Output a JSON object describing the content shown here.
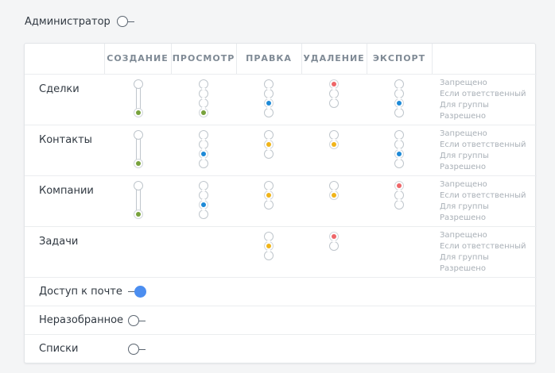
{
  "admin": {
    "label": "Администратор"
  },
  "columns": [
    "СОЗДАНИЕ",
    "ПРОСМОТР",
    "ПРАВКА",
    "УДАЛЕНИЕ",
    "ЭКСПОРТ"
  ],
  "levels": [
    "Запрещено",
    "Если ответственный",
    "Для группы",
    "Разрешено"
  ],
  "colors": {
    "green": "#78a23c",
    "blue": "#1e8ad7",
    "yellow": "#f0b41a",
    "red": "#ee6669",
    "toggle": "#4c8ef0"
  },
  "entities": [
    {
      "label": "Сделки",
      "cells": [
        {
          "type": "rail",
          "color": "green"
        },
        {
          "type": "chain4",
          "active": 3,
          "color": "green"
        },
        {
          "type": "chain4",
          "active": 2,
          "color": "blue"
        },
        {
          "type": "chain3",
          "active": 0,
          "color": "red"
        },
        {
          "type": "chain4",
          "active": 2,
          "color": "blue"
        }
      ]
    },
    {
      "label": "Контакты",
      "cells": [
        {
          "type": "rail",
          "color": "green"
        },
        {
          "type": "chain4",
          "active": 2,
          "color": "blue"
        },
        {
          "type": "chain3",
          "active": 1,
          "color": "yellow"
        },
        {
          "type": "chain2",
          "active": 1,
          "color": "yellow"
        },
        {
          "type": "chain4",
          "active": 2,
          "color": "blue"
        }
      ]
    },
    {
      "label": "Компании",
      "cells": [
        {
          "type": "rail",
          "color": "green"
        },
        {
          "type": "chain4",
          "active": 2,
          "color": "blue"
        },
        {
          "type": "chain3",
          "active": 1,
          "color": "yellow"
        },
        {
          "type": "chain2",
          "active": 1,
          "color": "yellow"
        },
        {
          "type": "chain3",
          "active": 0,
          "color": "red"
        }
      ]
    },
    {
      "label": "Задачи",
      "cells": [
        null,
        null,
        {
          "type": "chain3",
          "active": 1,
          "color": "yellow"
        },
        {
          "type": "chain2",
          "active": 0,
          "color": "red"
        },
        null
      ]
    }
  ],
  "toggles": [
    {
      "label": "Доступ к почте",
      "on": true
    },
    {
      "label": "Неразобранное",
      "on": false
    },
    {
      "label": "Списки",
      "on": false
    }
  ]
}
